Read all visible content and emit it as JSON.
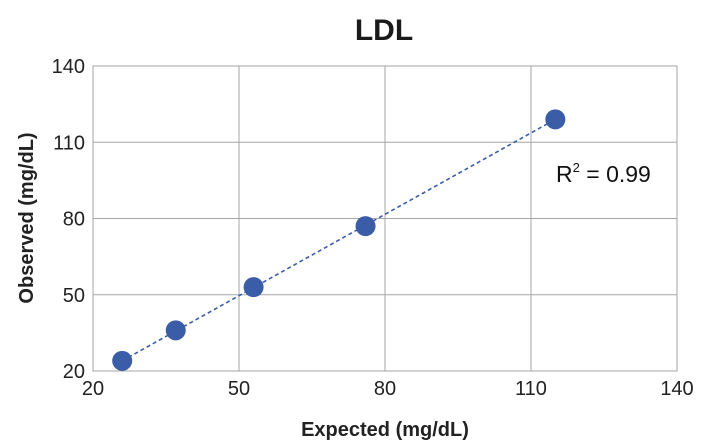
{
  "chart_data": {
    "type": "scatter",
    "title": "LDL",
    "xlabel": "Expected (mg/dL)",
    "ylabel": "Observed (mg/dL)",
    "xlim": [
      20,
      140
    ],
    "ylim": [
      20,
      140
    ],
    "xticks": [
      "20",
      "50",
      "80",
      "110",
      "140"
    ],
    "yticks": [
      "20",
      "50",
      "80",
      "110",
      "140"
    ],
    "grid": true,
    "points": [
      {
        "x": 26,
        "y": 24
      },
      {
        "x": 37,
        "y": 36
      },
      {
        "x": 53,
        "y": 53
      },
      {
        "x": 76,
        "y": 77
      },
      {
        "x": 115,
        "y": 119
      }
    ],
    "trendline": {
      "style": "dashed",
      "x": [
        26,
        115
      ],
      "y": [
        24,
        119
      ]
    },
    "annotation": {
      "r_letter": "R",
      "r_exp": "2",
      "r_value": " = 0.99"
    },
    "colors": {
      "marker": "#3b5da8",
      "grid": "#a6a6a6",
      "trend": "#3b5da8"
    }
  }
}
